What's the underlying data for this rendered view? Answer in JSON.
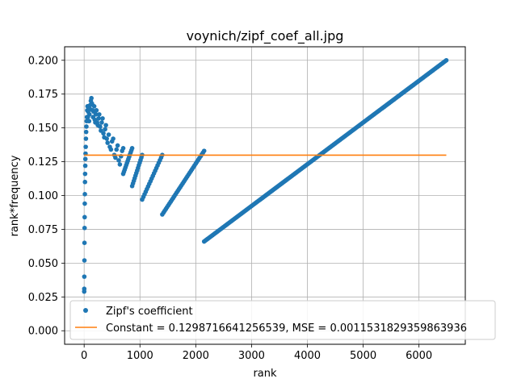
{
  "chart_data": {
    "type": "scatter",
    "title": "voynich/zipf_coef_all.jpg",
    "xlabel": "rank",
    "ylabel": "rank*frequency",
    "xlim": [
      -350,
      6830
    ],
    "ylim": [
      -0.01,
      0.21
    ],
    "xticks": [
      0,
      1000,
      2000,
      3000,
      4000,
      5000,
      6000
    ],
    "yticks": [
      0.0,
      0.025,
      0.05,
      0.075,
      0.1,
      0.125,
      0.15,
      0.175,
      0.2
    ],
    "xtick_labels": [
      "0",
      "1000",
      "2000",
      "3000",
      "4000",
      "5000",
      "6000"
    ],
    "ytick_labels": [
      "0.000",
      "0.025",
      "0.050",
      "0.075",
      "0.100",
      "0.125",
      "0.150",
      "0.175",
      "0.200"
    ],
    "grid": true,
    "legend_position": "lower right",
    "series": [
      {
        "name": "Zipf's coefficient",
        "kind": "points",
        "color": "#1f77b4",
        "early_points": [
          [
            1,
            0.029
          ],
          [
            2,
            0.031
          ],
          [
            3,
            0.04
          ],
          [
            5,
            0.052
          ],
          [
            6,
            0.065
          ],
          [
            8,
            0.076
          ],
          [
            9,
            0.084
          ],
          [
            11,
            0.094
          ],
          [
            13,
            0.101
          ],
          [
            15,
            0.11
          ],
          [
            17,
            0.116
          ],
          [
            20,
            0.122
          ],
          [
            22,
            0.127
          ],
          [
            25,
            0.131
          ],
          [
            28,
            0.136
          ],
          [
            32,
            0.142
          ],
          [
            36,
            0.147
          ],
          [
            40,
            0.151
          ],
          [
            45,
            0.155
          ],
          [
            50,
            0.158
          ],
          [
            55,
            0.163
          ],
          [
            60,
            0.166
          ],
          [
            66,
            0.158
          ],
          [
            72,
            0.162
          ],
          [
            80,
            0.166
          ],
          [
            88,
            0.155
          ],
          [
            95,
            0.16
          ],
          [
            103,
            0.164
          ],
          [
            112,
            0.167
          ],
          [
            120,
            0.17
          ],
          [
            130,
            0.172
          ],
          [
            140,
            0.168
          ],
          [
            150,
            0.163
          ],
          [
            160,
            0.158
          ],
          [
            170,
            0.162
          ],
          [
            180,
            0.166
          ],
          [
            190,
            0.156
          ],
          [
            200,
            0.154
          ],
          [
            210,
            0.16
          ],
          [
            220,
            0.163
          ],
          [
            232,
            0.154
          ],
          [
            245,
            0.152
          ],
          [
            258,
            0.157
          ],
          [
            270,
            0.16
          ],
          [
            285,
            0.151
          ],
          [
            300,
            0.148
          ],
          [
            315,
            0.154
          ],
          [
            330,
            0.157
          ],
          [
            345,
            0.146
          ],
          [
            360,
            0.143
          ],
          [
            375,
            0.149
          ],
          [
            390,
            0.152
          ],
          [
            405,
            0.142
          ],
          [
            420,
            0.139
          ],
          [
            440,
            0.145
          ],
          [
            460,
            0.136
          ],
          [
            480,
            0.134
          ],
          [
            500,
            0.14
          ],
          [
            520,
            0.142
          ],
          [
            540,
            0.13
          ],
          [
            560,
            0.128
          ],
          [
            580,
            0.134
          ],
          [
            600,
            0.137
          ],
          [
            620,
            0.126
          ],
          [
            640,
            0.123
          ],
          [
            660,
            0.129
          ],
          [
            680,
            0.133
          ],
          [
            700,
            0.135
          ]
        ],
        "segments": [
          {
            "x_start": 700,
            "x_end": 860,
            "y_start": 0.116,
            "y_end": 0.135
          },
          {
            "x_start": 860,
            "x_end": 1040,
            "y_start": 0.107,
            "y_end": 0.13
          },
          {
            "x_start": 1040,
            "x_end": 1400,
            "y_start": 0.097,
            "y_end": 0.13
          },
          {
            "x_start": 1400,
            "x_end": 2150,
            "y_start": 0.086,
            "y_end": 0.133
          },
          {
            "x_start": 2150,
            "x_end": 6490,
            "y_start": 0.066,
            "y_end": 0.2
          }
        ]
      },
      {
        "name": "Constant = 0.1298716641256539, MSE = 0.0011531829359863936",
        "kind": "line",
        "color": "#ff7f0e",
        "x": [
          0,
          6490
        ],
        "y": [
          0.1298716641256539,
          0.1298716641256539
        ]
      }
    ]
  }
}
